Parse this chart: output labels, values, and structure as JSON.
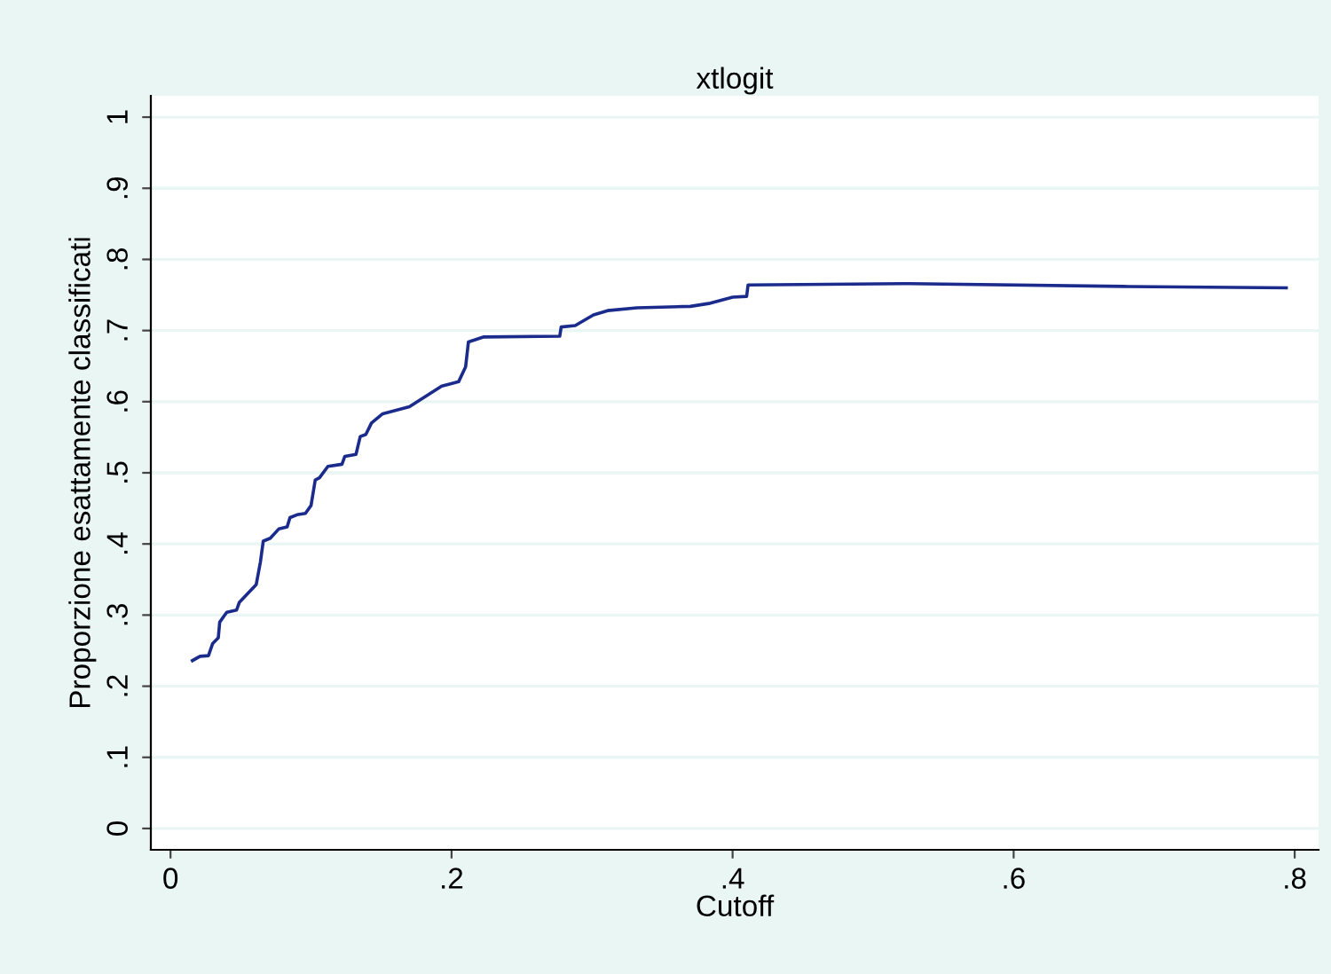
{
  "chart_data": {
    "type": "line",
    "title": "xtlogit",
    "xlabel": "Cutoff",
    "ylabel": "Proporzione esattamente classificati",
    "xlim": [
      -0.014,
      0.817
    ],
    "ylim": [
      -0.03,
      1.03
    ],
    "xticks": [
      0,
      {
        "value": 0.2,
        "label": ".2"
      },
      {
        "value": 0.4,
        "label": ".4"
      },
      {
        "value": 0.6,
        "label": ".6"
      },
      {
        "value": 0.8,
        "label": ".8"
      }
    ],
    "yticks": [
      0,
      {
        "value": 0.1,
        "label": ".1"
      },
      {
        "value": 0.2,
        "label": ".2"
      },
      {
        "value": 0.3,
        "label": ".3"
      },
      {
        "value": 0.4,
        "label": ".4"
      },
      {
        "value": 0.5,
        "label": ".5"
      },
      {
        "value": 0.6,
        "label": ".6"
      },
      {
        "value": 0.7,
        "label": ".7"
      },
      {
        "value": 0.8,
        "label": ".8"
      },
      {
        "value": 0.9,
        "label": ".9"
      },
      1
    ],
    "grid": "y",
    "marker": "none",
    "line_style": "solid",
    "series": [
      {
        "color": "#1a2b8c",
        "x": [
          0.0156,
          0.021,
          0.027,
          0.03,
          0.034,
          0.035,
          0.04,
          0.047,
          0.049,
          0.061,
          0.064,
          0.066,
          0.071,
          0.077,
          0.083,
          0.085,
          0.09,
          0.096,
          0.1,
          0.103,
          0.106,
          0.112,
          0.122,
          0.124,
          0.132,
          0.135,
          0.139,
          0.143,
          0.151,
          0.17,
          0.193,
          0.205,
          0.21,
          0.212,
          0.223,
          0.277,
          0.278,
          0.288,
          0.301,
          0.311,
          0.332,
          0.37,
          0.383,
          0.4,
          0.41,
          0.411,
          0.526,
          0.678,
          0.794
        ],
        "values": [
          0.236,
          0.242,
          0.243,
          0.26,
          0.268,
          0.29,
          0.304,
          0.307,
          0.318,
          0.343,
          0.375,
          0.404,
          0.408,
          0.421,
          0.424,
          0.437,
          0.441,
          0.443,
          0.454,
          0.49,
          0.493,
          0.509,
          0.512,
          0.523,
          0.526,
          0.551,
          0.554,
          0.57,
          0.583,
          0.593,
          0.622,
          0.628,
          0.649,
          0.684,
          0.691,
          0.692,
          0.705,
          0.707,
          0.722,
          0.728,
          0.732,
          0.734,
          0.738,
          0.747,
          0.748,
          0.764,
          0.766,
          0.762,
          0.76
        ]
      }
    ]
  }
}
